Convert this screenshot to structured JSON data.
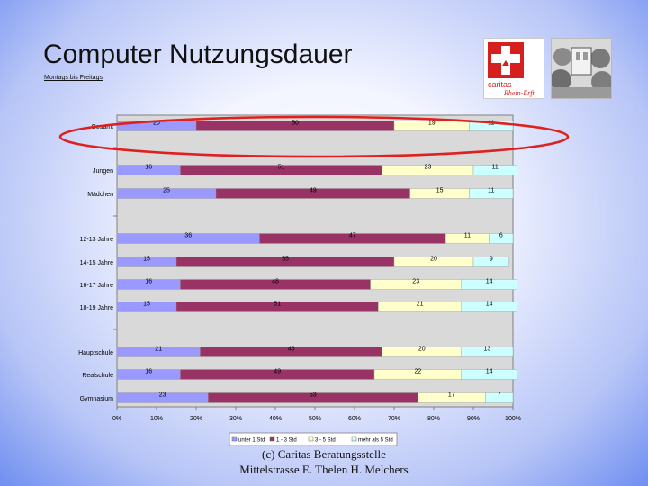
{
  "slide": {
    "title": "Computer Nutzungsdauer",
    "subtitle": "Montags bis Freitags",
    "footer_line1": "(c) Caritas Beratungsstelle",
    "footer_line2": "Mittelstrasse E. Thelen H. Melchers"
  },
  "logo": {
    "caritas_text": "caritas",
    "region_text": "Rhein-Erft"
  },
  "highlight": {
    "shape": "ellipse",
    "color": "#e02020",
    "target_category": "Gesamt"
  },
  "chart_data": {
    "type": "bar",
    "orientation": "horizontal",
    "stacked": "percent",
    "categories": [
      "Gesamt",
      "Jungen",
      "Mädchen",
      "12-13 Jahre",
      "14-15 Jahre",
      "16-17 Jahre",
      "18-19 Jahre",
      "Hauptschule",
      "Realschule",
      "Gymnasium"
    ],
    "group_separators_after": [
      0,
      2,
      6
    ],
    "series": [
      {
        "name": "unter 1 Std",
        "color": "#9999ff",
        "values": [
          20,
          16,
          25,
          36,
          15,
          16,
          15,
          21,
          16,
          23
        ]
      },
      {
        "name": "1 - 3 Std",
        "color": "#993366",
        "values": [
          50,
          51,
          49,
          47,
          55,
          48,
          51,
          46,
          49,
          53
        ]
      },
      {
        "name": "3 - 5 Std",
        "color": "#ffffcc",
        "values": [
          19,
          23,
          15,
          11,
          20,
          23,
          21,
          20,
          22,
          17
        ]
      },
      {
        "name": "mehr als 5 Std",
        "color": "#ccffff",
        "values": [
          11,
          11,
          11,
          6,
          9,
          14,
          14,
          13,
          14,
          7
        ]
      }
    ],
    "x_ticks": [
      "0%",
      "10%",
      "20%",
      "30%",
      "40%",
      "50%",
      "60%",
      "70%",
      "80%",
      "90%",
      "100%"
    ],
    "xlim": [
      0,
      100
    ],
    "legend_position": "bottom"
  }
}
